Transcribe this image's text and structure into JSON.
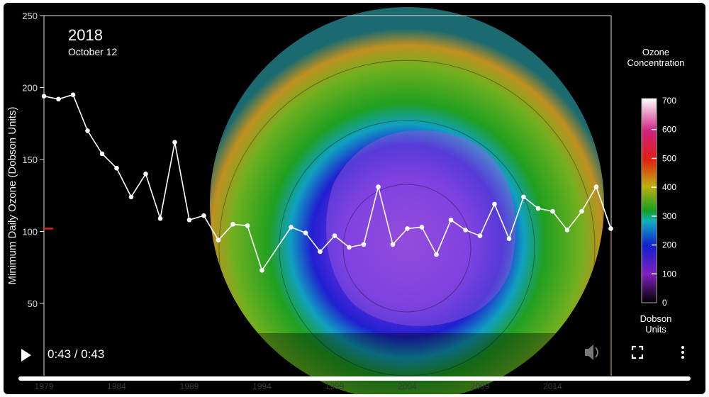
{
  "overlay": {
    "year": "2018",
    "date": "October 12"
  },
  "player": {
    "time": "0:43 / 0:43",
    "progress_percent": 100,
    "state": "paused",
    "icons": {
      "play": "play-icon",
      "volume": "volume-icon",
      "fullscreen": "fullscreen-icon",
      "menu": "more-vert-icon"
    }
  },
  "colorbar": {
    "title_line1": "Ozone",
    "title_line2": "Concentration",
    "unit_line1": "Dobson",
    "unit_line2": "Units",
    "ticks": [
      "0",
      "100",
      "200",
      "300",
      "400",
      "500",
      "600",
      "700"
    ],
    "range": [
      0,
      700
    ]
  },
  "chart_data": {
    "type": "line",
    "ylabel": "Minimum Daily Ozone (Dobson Units)",
    "ylim": [
      0,
      250
    ],
    "yticks": [
      "50",
      "100",
      "150",
      "200",
      "250"
    ],
    "xticks": [
      "1979",
      "1984",
      "1989",
      "1994",
      "1999",
      "2004",
      "2009",
      "2014"
    ],
    "current_value_marker": 102,
    "x": [
      1979,
      1980,
      1981,
      1982,
      1983,
      1984,
      1985,
      1986,
      1987,
      1988,
      1989,
      1990,
      1991,
      1992,
      1993,
      1994,
      1996,
      1997,
      1998,
      1999,
      2000,
      2001,
      2002,
      2003,
      2004,
      2005,
      2006,
      2007,
      2008,
      2009,
      2010,
      2011,
      2012,
      2013,
      2014,
      2015,
      2016,
      2017,
      2018
    ],
    "y": [
      194,
      192,
      195,
      170,
      154,
      144,
      124,
      140,
      109,
      162,
      108,
      111,
      94,
      105,
      104,
      73,
      103,
      99,
      86,
      97,
      89,
      91,
      131,
      91,
      102,
      103,
      84,
      108,
      101,
      97,
      119,
      95,
      124,
      116,
      114,
      101,
      114,
      131,
      102
    ]
  }
}
